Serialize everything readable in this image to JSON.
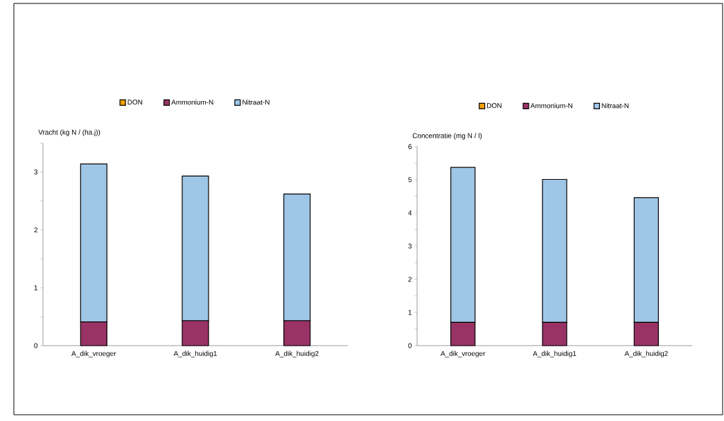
{
  "chart_data": [
    {
      "type": "bar",
      "stacked": true,
      "ylabel": "Vracht (kg N / (ha.j))",
      "categories": [
        "A_dik_vroeger",
        "A_dik_huidig1",
        "A_dik_huidig2"
      ],
      "series": [
        {
          "name": "DON",
          "color": "#f0a000",
          "values": [
            0,
            0,
            0
          ]
        },
        {
          "name": "Ammonium-N",
          "color": "#993366",
          "values": [
            0.41,
            0.43,
            0.43
          ]
        },
        {
          "name": "Nitraat-N",
          "color": "#9fc6e7",
          "values": [
            2.73,
            2.5,
            2.19
          ]
        }
      ],
      "ylim": [
        0,
        3.5
      ],
      "yticks": [
        0,
        {
          "value": 0.5,
          "label": null
        },
        1,
        {
          "value": 1.5,
          "label": null
        },
        2,
        {
          "value": 2.5,
          "label": null
        },
        3,
        {
          "value": 3.5,
          "label": null
        }
      ],
      "legend": "top"
    },
    {
      "type": "bar",
      "stacked": true,
      "ylabel": "Concentratie (mg N / l)",
      "categories": [
        "A_dik_vroeger",
        "A_dik_huidig1",
        "A_dik_huidig2"
      ],
      "series": [
        {
          "name": "DON",
          "color": "#f0a000",
          "values": [
            0,
            0,
            0
          ]
        },
        {
          "name": "Ammonium-N",
          "color": "#993366",
          "values": [
            0.7,
            0.7,
            0.7
          ]
        },
        {
          "name": "Nitraat-N",
          "color": "#9fc6e7",
          "values": [
            4.67,
            4.31,
            3.76
          ]
        }
      ],
      "ylim": [
        0,
        6
      ],
      "yticks": [
        0,
        {
          "value": 0.5,
          "label": null
        },
        1,
        {
          "value": 1.5,
          "label": null
        },
        2,
        {
          "value": 2.5,
          "label": null
        },
        3,
        {
          "value": 3.5,
          "label": null
        },
        4,
        {
          "value": 4.5,
          "label": null
        },
        5,
        {
          "value": 5.5,
          "label": null
        },
        6
      ],
      "legend": "top"
    }
  ]
}
